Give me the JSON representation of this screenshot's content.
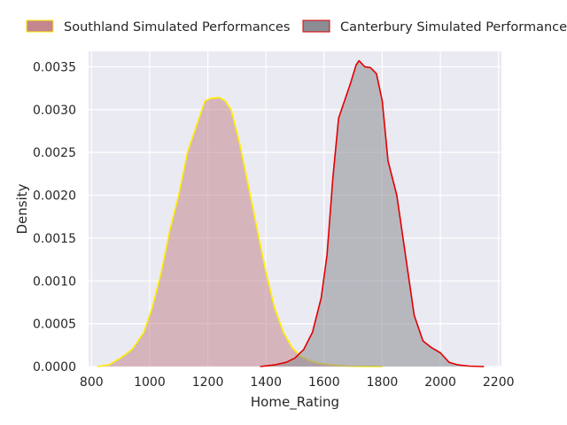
{
  "chart_data": {
    "type": "area",
    "xlabel": "Home_Rating",
    "ylabel": "Density",
    "xlim": [
      790,
      2210
    ],
    "ylim": [
      0,
      0.00368
    ],
    "x_ticks": [
      800,
      1000,
      1200,
      1400,
      1600,
      1800,
      2000,
      2200
    ],
    "x_tick_labels": [
      "800",
      "1000",
      "1200",
      "1400",
      "1600",
      "1800",
      "2000",
      "2200"
    ],
    "y_ticks": [
      0,
      0.0005,
      0.001,
      0.0015,
      0.002,
      0.0025,
      0.003,
      0.0035
    ],
    "y_tick_labels": [
      "0.0000",
      "0.0005",
      "0.0010",
      "0.0015",
      "0.0020",
      "0.0025",
      "0.0030",
      "0.0035"
    ],
    "grid": true,
    "legend_position": "top",
    "background_color": "#eaeaf2",
    "series": [
      {
        "name": "Southland Simulated Performances",
        "fill_color": "#c4878f",
        "line_color": "#ffee00",
        "x": [
          820,
          860,
          900,
          940,
          980,
          1010,
          1040,
          1070,
          1100,
          1130,
          1160,
          1190,
          1210,
          1240,
          1260,
          1280,
          1310,
          1340,
          1370,
          1400,
          1430,
          1460,
          1490,
          1520,
          1550,
          1580,
          1620,
          1680,
          1750,
          1800
        ],
        "y": [
          0,
          2e-05,
          0.0001,
          0.0002,
          0.0004,
          0.0007,
          0.0011,
          0.0016,
          0.002,
          0.0025,
          0.0028,
          0.0031,
          0.00313,
          0.00314,
          0.0031,
          0.003,
          0.0026,
          0.0021,
          0.0016,
          0.0011,
          0.00068,
          0.0004,
          0.00022,
          0.00012,
          7e-05,
          4e-05,
          2e-05,
          5e-06,
          2e-06,
          0
        ]
      },
      {
        "name": "Canterbury Simulated Performances",
        "fill_color": "#8c8c94",
        "line_color": "#e20000",
        "x": [
          1380,
          1430,
          1470,
          1500,
          1530,
          1560,
          1590,
          1610,
          1630,
          1650,
          1670,
          1690,
          1710,
          1720,
          1740,
          1760,
          1780,
          1800,
          1820,
          1850,
          1880,
          1910,
          1940,
          1970,
          2000,
          2030,
          2060,
          2100,
          2150
        ],
        "y": [
          0,
          2e-05,
          5e-05,
          0.0001,
          0.0002,
          0.0004,
          0.0008,
          0.0013,
          0.0022,
          0.0029,
          0.0031,
          0.0033,
          0.00352,
          0.00357,
          0.0035,
          0.00349,
          0.00342,
          0.0031,
          0.0024,
          0.002,
          0.0013,
          0.0006,
          0.0003,
          0.00022,
          0.00016,
          5e-05,
          2e-05,
          5e-06,
          0
        ]
      }
    ]
  }
}
